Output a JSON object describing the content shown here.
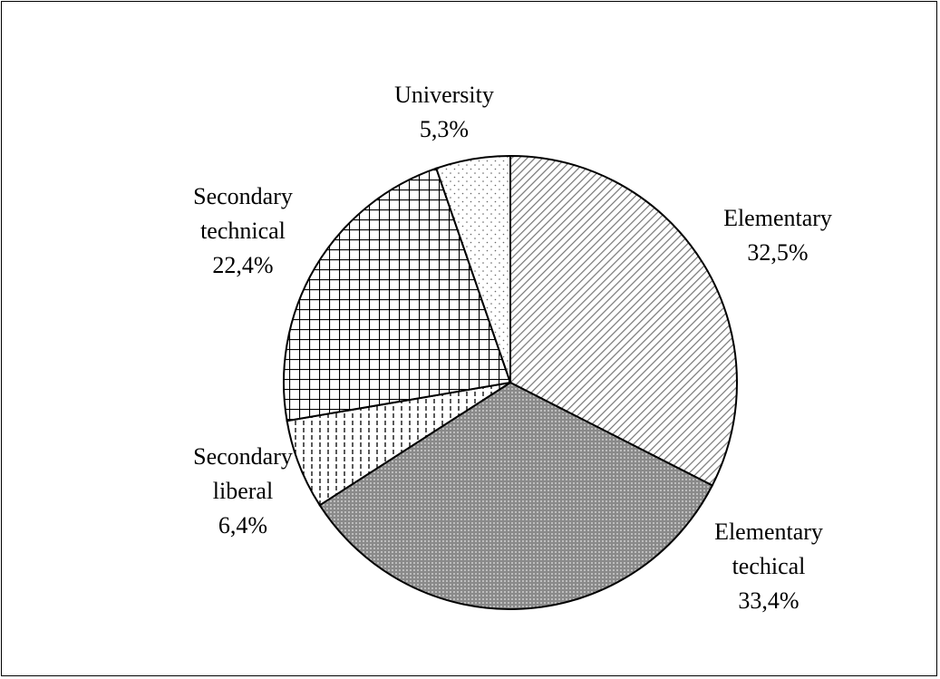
{
  "chart_data": {
    "type": "pie",
    "categories": [
      "Elementary",
      "Elementary techical",
      "Secondary liberal",
      "Secondary technical",
      "University"
    ],
    "values": [
      32.5,
      33.4,
      6.4,
      22.4,
      5.3
    ],
    "value_labels": [
      "32,5%",
      "33,4%",
      "6,4%",
      "22,4%",
      "5,3%"
    ]
  }
}
